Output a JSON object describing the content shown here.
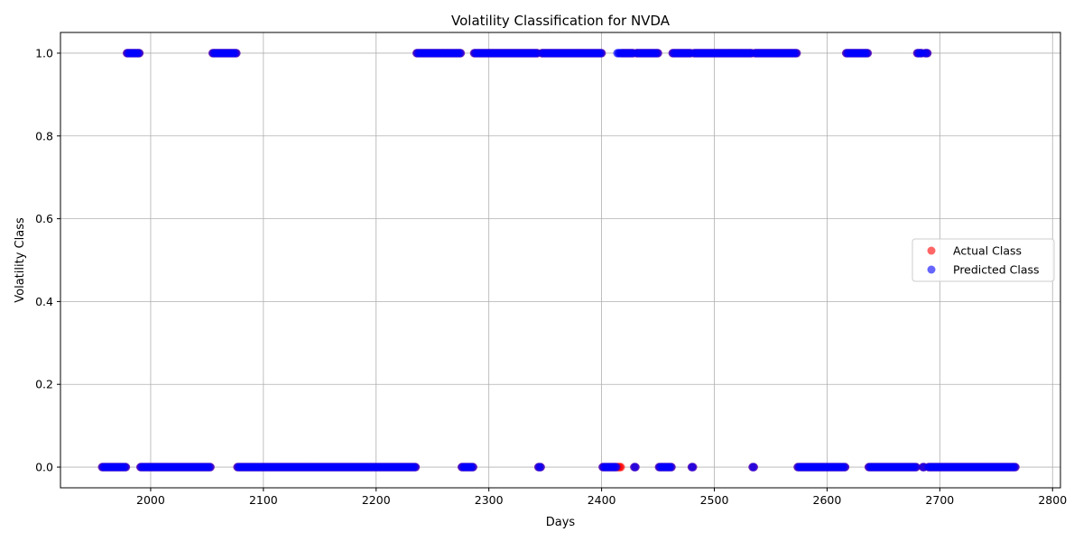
{
  "chart_data": {
    "type": "scatter",
    "title": "Volatility Classification for NVDA",
    "xlabel": "Days",
    "ylabel": "Volatility Class",
    "xlim": [
      1920,
      2807
    ],
    "ylim": [
      -0.05,
      1.05
    ],
    "xticks": [
      2000,
      2100,
      2200,
      2300,
      2400,
      2500,
      2600,
      2700,
      2800
    ],
    "yticks": [
      0.0,
      0.2,
      0.4,
      0.6,
      0.8,
      1.0
    ],
    "ytick_labels": [
      "0.0",
      "0.2",
      "0.4",
      "0.6",
      "0.8",
      "1.0"
    ],
    "grid": true,
    "legend_position": "center-right",
    "series": [
      {
        "name": "Actual Class",
        "color": "#ff0000",
        "alpha": 0.6,
        "runs": [
          [
            1957,
            1978,
            0
          ],
          [
            1979,
            1990,
            1
          ],
          [
            1991,
            2053,
            0
          ],
          [
            2055,
            2076,
            1
          ],
          [
            2077,
            2235,
            0
          ],
          [
            2236,
            2275,
            1
          ],
          [
            2276,
            2286,
            0
          ],
          [
            2287,
            2343,
            1
          ],
          [
            2344,
            2346,
            0
          ],
          [
            2347,
            2400,
            1
          ],
          [
            2401,
            2417,
            0
          ],
          [
            2418,
            2428,
            1
          ],
          [
            2429,
            2430,
            0
          ],
          [
            2431,
            2450,
            1
          ],
          [
            2451,
            2462,
            0
          ],
          [
            2463,
            2479,
            1
          ],
          [
            2480,
            2481,
            0
          ],
          [
            2482,
            2533,
            1
          ],
          [
            2534,
            2535,
            0
          ],
          [
            2536,
            2573,
            1
          ],
          [
            2574,
            2616,
            0
          ],
          [
            2617,
            2636,
            1
          ],
          [
            2637,
            2679,
            0
          ],
          [
            2680,
            2684,
            1
          ],
          [
            2685,
            2686,
            0
          ],
          [
            2687,
            2689,
            1
          ],
          [
            2690,
            2767,
            0
          ]
        ]
      },
      {
        "name": "Predicted Class",
        "color": "#0000ff",
        "alpha": 0.6,
        "runs": [
          [
            1957,
            1978,
            0
          ],
          [
            1979,
            1990,
            1
          ],
          [
            1991,
            2053,
            0
          ],
          [
            2055,
            2076,
            1
          ],
          [
            2077,
            2235,
            0
          ],
          [
            2236,
            2275,
            1
          ],
          [
            2276,
            2286,
            0
          ],
          [
            2287,
            2343,
            1
          ],
          [
            2344,
            2346,
            0
          ],
          [
            2347,
            2400,
            1
          ],
          [
            2401,
            2413,
            0
          ],
          [
            2414,
            2428,
            1
          ],
          [
            2429,
            2430,
            0
          ],
          [
            2431,
            2450,
            1
          ],
          [
            2451,
            2462,
            0
          ],
          [
            2463,
            2479,
            1
          ],
          [
            2480,
            2481,
            0
          ],
          [
            2482,
            2533,
            1
          ],
          [
            2534,
            2535,
            0
          ],
          [
            2536,
            2573,
            1
          ],
          [
            2574,
            2616,
            0
          ],
          [
            2617,
            2636,
            1
          ],
          [
            2637,
            2679,
            0
          ],
          [
            2680,
            2684,
            1
          ],
          [
            2685,
            2686,
            0
          ],
          [
            2687,
            2689,
            1
          ],
          [
            2690,
            2767,
            0
          ]
        ]
      }
    ]
  }
}
